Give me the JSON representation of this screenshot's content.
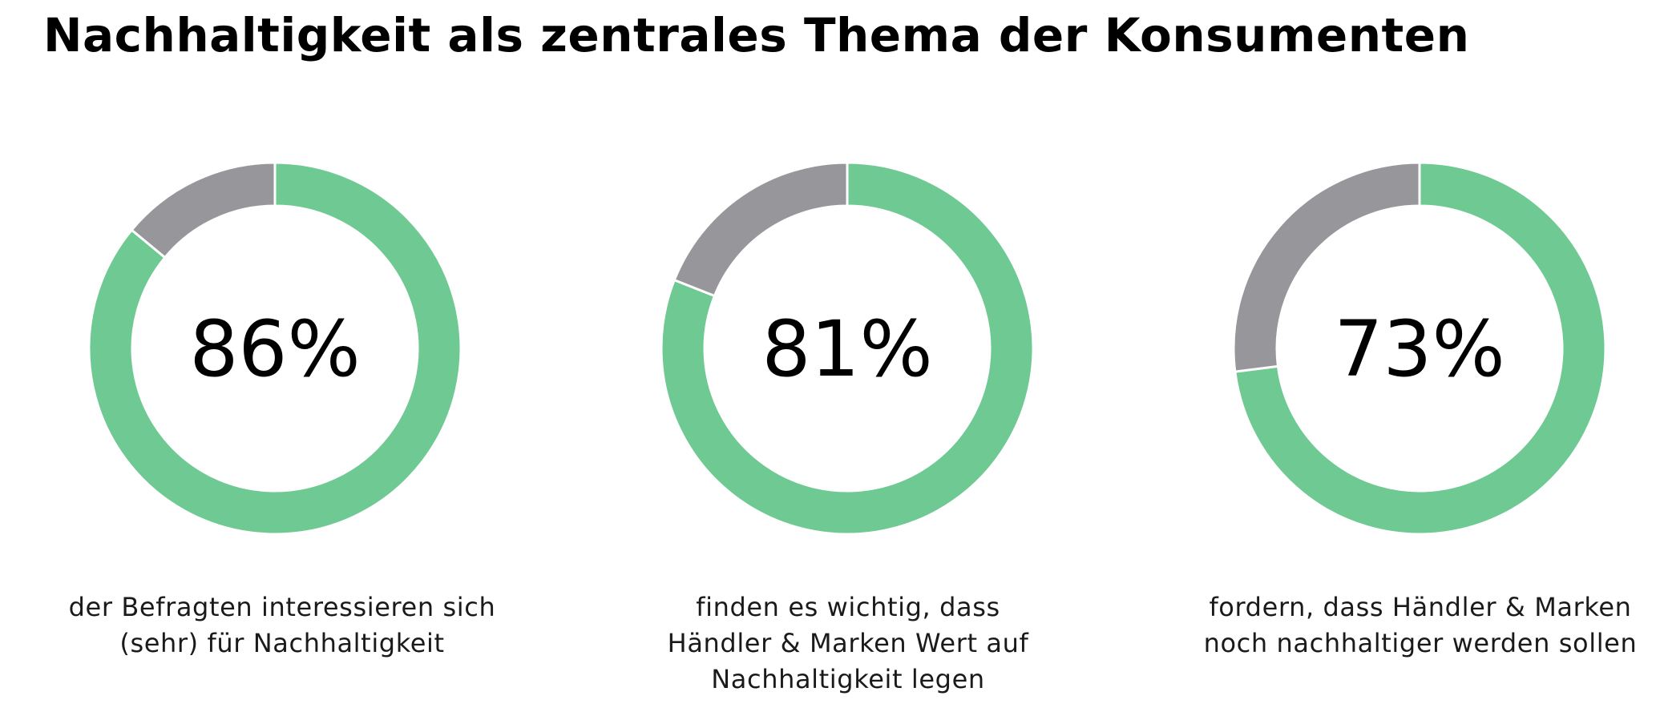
{
  "title": "Nachhaltigkeit als zentrales Thema der Konsumenten",
  "chart_data": [
    {
      "type": "pie",
      "categories": [
        "",
        ""
      ],
      "values": [
        86,
        14
      ],
      "label": "86%",
      "caption": [
        "der Befragten interessieren sich",
        "(sehr) für Nachhaltigkeit"
      ]
    },
    {
      "type": "pie",
      "categories": [
        "",
        ""
      ],
      "values": [
        81,
        19
      ],
      "label": "81%",
      "caption": [
        "finden es wichtig, dass",
        "Händler & Marken Wert auf",
        "Nachhaltigkeit legen"
      ]
    },
    {
      "type": "pie",
      "categories": [
        "",
        ""
      ],
      "values": [
        73,
        27
      ],
      "label": "73%",
      "caption": [
        "fordern, dass Händler & Marken",
        "noch nachhaltiger werden sollen"
      ]
    }
  ],
  "colors": {
    "primary": "#6fc992",
    "secondary": "#97979b",
    "separator": "#ffffff"
  }
}
